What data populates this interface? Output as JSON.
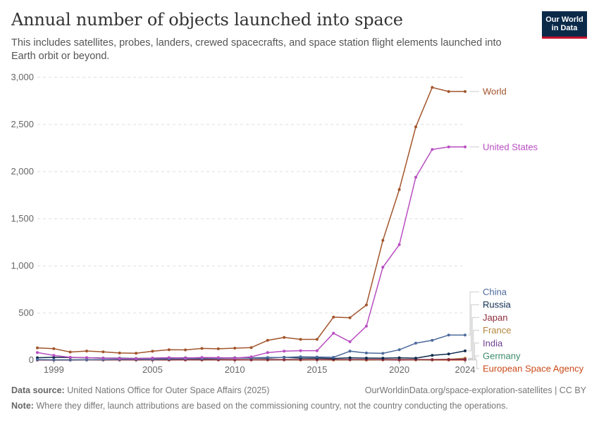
{
  "header": {
    "title": "Annual number of objects launched into space",
    "subtitle": "This includes satellites, probes, landers, crewed spacecrafts, and space station flight elements launched into Earth orbit or beyond.",
    "logo_line1": "Our World",
    "logo_line2": "in Data"
  },
  "footer": {
    "source_label": "Data source:",
    "source_text": "United Nations Office for Outer Space Affairs (2025)",
    "url_text": "OurWorldinData.org/space-exploration-satellites | CC BY",
    "note_label": "Note:",
    "note_text": "Where they differ, launch attributions are based on the commissioning country, not the country conducting the operations."
  },
  "chart_data": {
    "type": "line",
    "x": [
      1998,
      1999,
      2000,
      2001,
      2002,
      2003,
      2004,
      2005,
      2006,
      2007,
      2008,
      2009,
      2010,
      2011,
      2012,
      2013,
      2014,
      2015,
      2016,
      2017,
      2018,
      2019,
      2020,
      2021,
      2022,
      2023,
      2024
    ],
    "x_ticks": [
      1999,
      2005,
      2010,
      2015,
      2020,
      2024
    ],
    "x_tick_labels": [
      "1999",
      "2005",
      "2010",
      "2015",
      "2020",
      "2024"
    ],
    "y_ticks": [
      0,
      500,
      1000,
      1500,
      2000,
      2500,
      3000
    ],
    "y_tick_labels": [
      "0",
      "500",
      "1,000",
      "1,500",
      "2,000",
      "2,500",
      "3,000"
    ],
    "ylim": [
      0,
      3000
    ],
    "xlim": [
      1998,
      2024
    ],
    "grid": "horizontal dashed",
    "legend": "right, line-end labels",
    "series": [
      {
        "name": "World",
        "color": "#a2552c",
        "values": [
          130,
          122,
          86,
          96,
          88,
          75,
          73,
          94,
          110,
          108,
          124,
          120,
          127,
          133,
          210,
          240,
          220,
          220,
          456,
          450,
          585,
          1270,
          1810,
          2475,
          2893,
          2850,
          2850
        ]
      },
      {
        "name": "United States",
        "color": "#b84ec1",
        "values": [
          80,
          50,
          30,
          26,
          20,
          18,
          16,
          22,
          26,
          22,
          28,
          26,
          22,
          34,
          80,
          95,
          100,
          100,
          285,
          195,
          360,
          985,
          1225,
          1940,
          2235,
          2262,
          2262
        ]
      },
      {
        "name": "China",
        "color": "#4c6a9c",
        "values": [
          5,
          3,
          3,
          4,
          5,
          8,
          10,
          8,
          12,
          14,
          15,
          18,
          20,
          24,
          28,
          28,
          35,
          33,
          30,
          95,
          75,
          72,
          110,
          180,
          210,
          266,
          266
        ]
      },
      {
        "name": "Russia",
        "color": "#0e2a4c",
        "values": [
          25,
          30,
          28,
          25,
          22,
          20,
          18,
          20,
          22,
          24,
          20,
          22,
          24,
          22,
          22,
          30,
          22,
          20,
          18,
          24,
          22,
          20,
          24,
          20,
          50,
          65,
          98
        ]
      },
      {
        "name": "Japan",
        "color": "#8c2a3a",
        "values": [
          3,
          2,
          2,
          3,
          4,
          3,
          4,
          3,
          4,
          4,
          5,
          4,
          5,
          4,
          5,
          5,
          5,
          5,
          6,
          6,
          5,
          5,
          6,
          5,
          6,
          7,
          10
        ]
      },
      {
        "name": "France",
        "color": "#b3863d",
        "values": [
          3,
          3,
          4,
          3,
          4,
          3,
          4,
          3,
          4,
          3,
          4,
          3,
          4,
          3,
          4,
          4,
          3,
          4,
          3,
          4,
          3,
          4,
          5,
          4,
          5,
          8,
          20
        ]
      },
      {
        "name": "India",
        "color": "#6d3e91",
        "values": [
          1,
          1,
          1,
          2,
          2,
          2,
          2,
          2,
          3,
          2,
          3,
          3,
          2,
          3,
          3,
          3,
          4,
          4,
          5,
          4,
          5,
          4,
          3,
          5,
          5,
          6,
          6
        ]
      },
      {
        "name": "Germany",
        "color": "#3a8b6a",
        "values": [
          2,
          2,
          2,
          2,
          3,
          3,
          2,
          3,
          4,
          4,
          3,
          3,
          4,
          3,
          4,
          3,
          4,
          3,
          4,
          4,
          4,
          4,
          5,
          4,
          4,
          5,
          5
        ]
      },
      {
        "name": "European Space Agency",
        "color": "#c94a18",
        "values": [
          2,
          1,
          1,
          2,
          1,
          2,
          1,
          2,
          1,
          2,
          1,
          2,
          1,
          2,
          1,
          2,
          1,
          2,
          1,
          2,
          1,
          2,
          1,
          2,
          1,
          1,
          1
        ]
      }
    ]
  }
}
